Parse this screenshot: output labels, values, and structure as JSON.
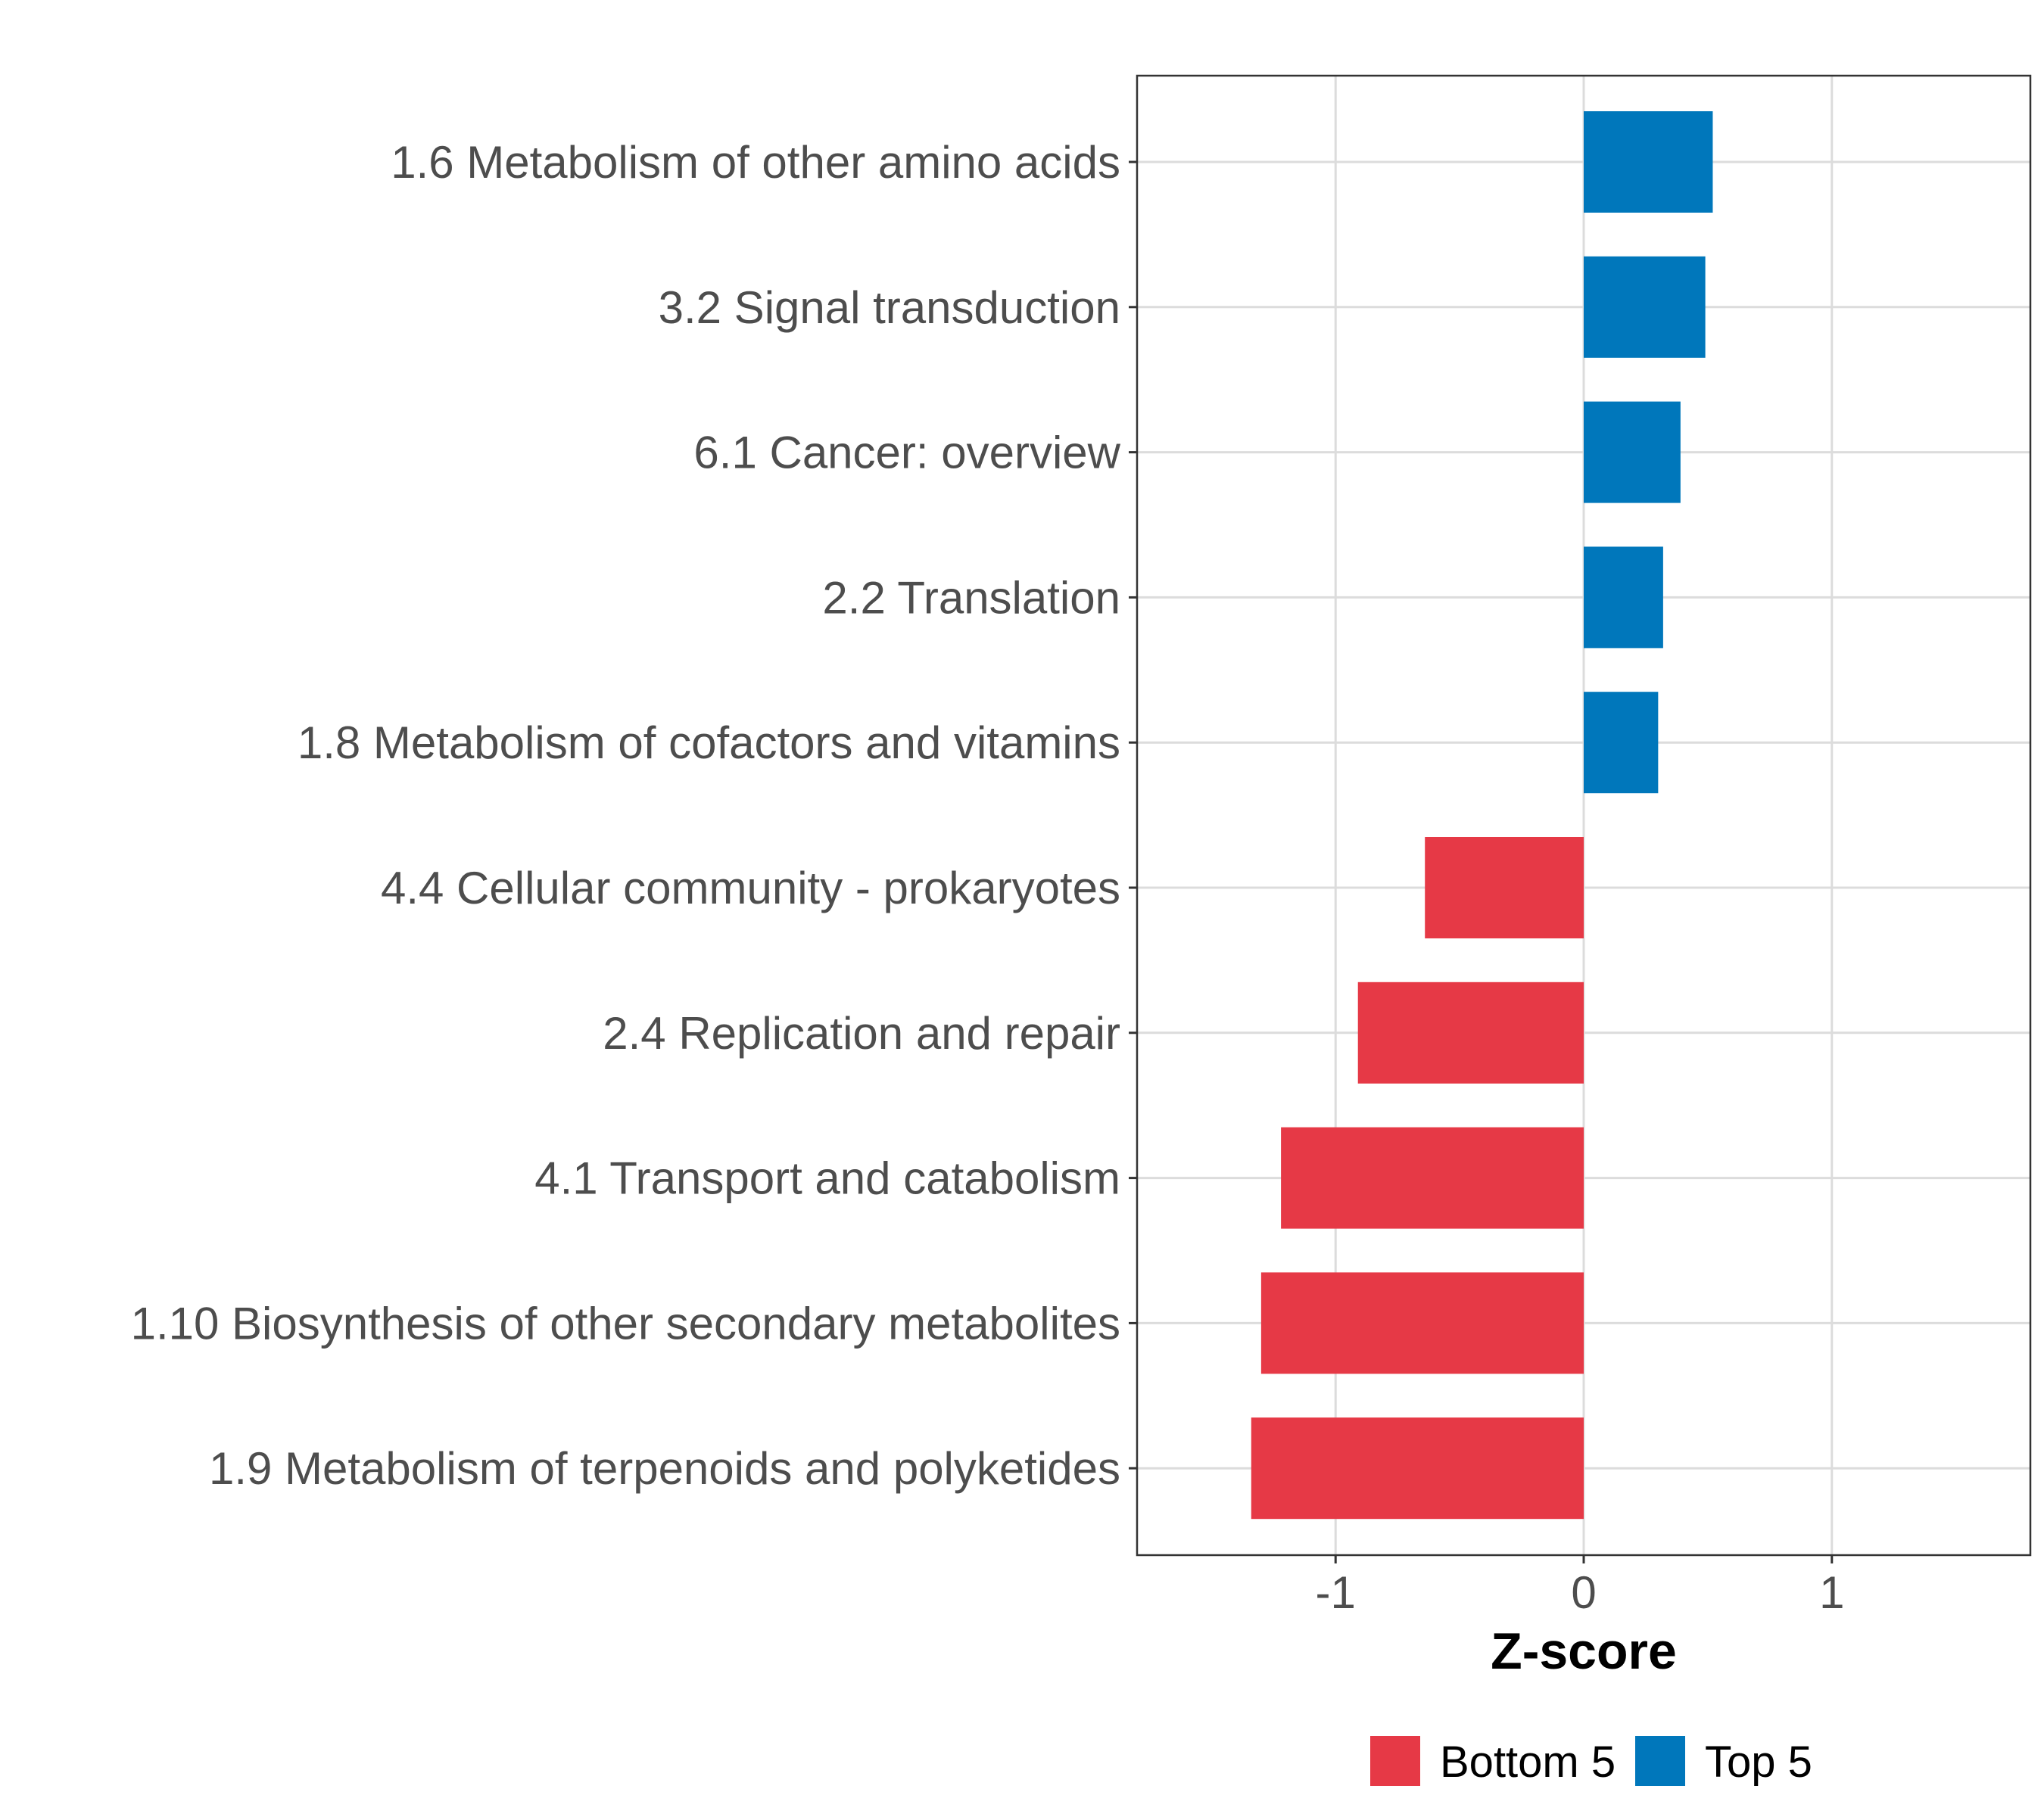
{
  "chart_data": {
    "type": "bar",
    "orientation": "horizontal",
    "title": "",
    "xlabel": "Z-score",
    "ylabel": "",
    "xlim": [
      -1.8,
      1.8
    ],
    "x_ticks": [
      -1,
      0,
      1
    ],
    "x_tick_labels": [
      "-1",
      "0",
      "1"
    ],
    "grid": true,
    "legend_position": "bottom",
    "categories": [
      "1.6 Metabolism of other amino acids",
      "3.2 Signal transduction",
      "6.1 Cancer: overview",
      "2.2 Translation",
      "1.8 Metabolism of cofactors and vitamins",
      "4.4 Cellular community - prokaryotes",
      "2.4 Replication and repair",
      "4.1 Transport and catabolism",
      "1.10 Biosynthesis of other secondary metabolites",
      "1.9 Metabolism of terpenoids and polyketides"
    ],
    "values": [
      0.52,
      0.49,
      0.39,
      0.32,
      0.3,
      -0.64,
      -0.91,
      -1.22,
      -1.3,
      -1.34
    ],
    "groups": [
      "Top 5",
      "Top 5",
      "Top 5",
      "Top 5",
      "Top 5",
      "Bottom 5",
      "Bottom 5",
      "Bottom 5",
      "Bottom 5",
      "Bottom 5"
    ],
    "legend": [
      {
        "name": "Bottom 5",
        "color": "#e63946"
      },
      {
        "name": "Top 5",
        "color": "#0077bb"
      }
    ]
  }
}
